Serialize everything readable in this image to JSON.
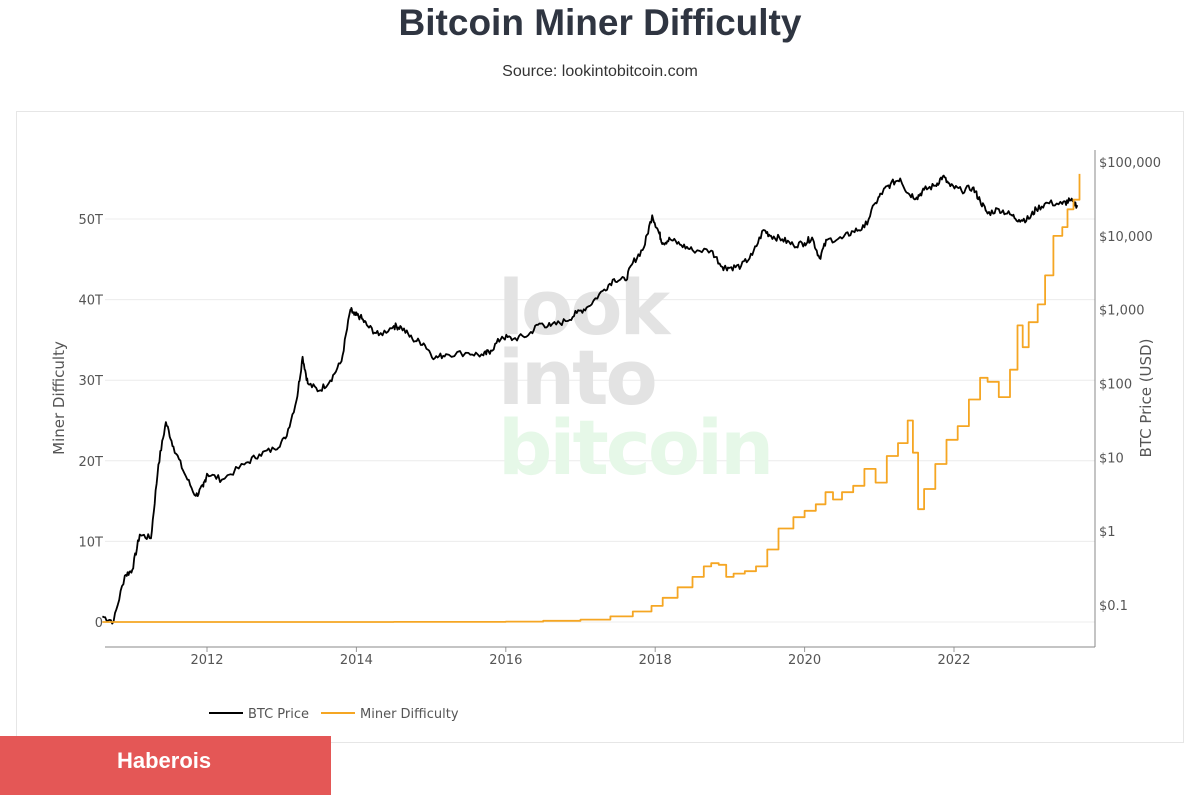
{
  "header": {
    "title": "Bitcoin Miner Difficulty",
    "subtitle": "Source: lookintobitcoin.com"
  },
  "watermark": {
    "line1": "look",
    "line2": "into",
    "line3": "bitcoin"
  },
  "badge": {
    "label": "Haberois"
  },
  "colors": {
    "btc_price": "#000000",
    "miner_difficulty": "#f5a623",
    "badge": "#e45756"
  },
  "chart_data": {
    "type": "line",
    "title": "Bitcoin Miner Difficulty",
    "subtitle": "Source: lookintobitcoin.com",
    "y_left": {
      "label": "Miner Difficulty",
      "range": [
        0,
        57
      ],
      "ticks": [
        "0",
        "10T",
        "20T",
        "30T",
        "40T",
        "50T"
      ],
      "tick_values": [
        0,
        10,
        20,
        30,
        40,
        50
      ]
    },
    "y_right": {
      "label": "BTC Price (USD)",
      "scale": "log",
      "range": [
        0.04,
        150000
      ],
      "ticks": [
        "$0.1",
        "$1",
        "$10",
        "$100",
        "$1,000",
        "$10,000",
        "$100,000"
      ],
      "tick_values": [
        0.1,
        1,
        10,
        100,
        1000,
        10000,
        100000
      ]
    },
    "x_axis": {
      "ticks": [
        "2012",
        "2014",
        "2016",
        "2018",
        "2020",
        "2022"
      ],
      "tick_values": [
        2012,
        2014,
        2016,
        2018,
        2020,
        2022
      ],
      "range": [
        2010.6,
        2023.8
      ]
    },
    "grid": true,
    "legend_position": "bottom-left",
    "series": [
      {
        "name": "BTC Price",
        "axis": "right",
        "points": [
          [
            2010.6,
            0.07
          ],
          [
            2010.75,
            0.06
          ],
          [
            2010.9,
            0.25
          ],
          [
            2011.0,
            0.3
          ],
          [
            2011.1,
            0.9
          ],
          [
            2011.25,
            0.8
          ],
          [
            2011.35,
            8
          ],
          [
            2011.45,
            30
          ],
          [
            2011.55,
            14
          ],
          [
            2011.7,
            6
          ],
          [
            2011.85,
            3
          ],
          [
            2011.95,
            4
          ],
          [
            2012.0,
            6
          ],
          [
            2012.2,
            5
          ],
          [
            2012.5,
            8
          ],
          [
            2012.7,
            11
          ],
          [
            2012.9,
            13
          ],
          [
            2013.05,
            18
          ],
          [
            2013.2,
            60
          ],
          [
            2013.28,
            230
          ],
          [
            2013.35,
            100
          ],
          [
            2013.5,
            80
          ],
          [
            2013.65,
            110
          ],
          [
            2013.8,
            200
          ],
          [
            2013.92,
            1000
          ],
          [
            2013.97,
            850
          ],
          [
            2014.05,
            800
          ],
          [
            2014.15,
            600
          ],
          [
            2014.3,
            450
          ],
          [
            2014.5,
            600
          ],
          [
            2014.6,
            580
          ],
          [
            2014.75,
            400
          ],
          [
            2014.9,
            350
          ],
          [
            2015.05,
            220
          ],
          [
            2015.2,
            250
          ],
          [
            2015.5,
            260
          ],
          [
            2015.7,
            240
          ],
          [
            2015.8,
            280
          ],
          [
            2015.95,
            430
          ],
          [
            2016.1,
            400
          ],
          [
            2016.3,
            450
          ],
          [
            2016.45,
            650
          ],
          [
            2016.6,
            600
          ],
          [
            2016.8,
            700
          ],
          [
            2016.95,
            900
          ],
          [
            2017.1,
            1100
          ],
          [
            2017.3,
            1800
          ],
          [
            2017.45,
            2600
          ],
          [
            2017.6,
            2500
          ],
          [
            2017.7,
            4300
          ],
          [
            2017.85,
            7000
          ],
          [
            2017.96,
            19000
          ],
          [
            2018.05,
            11000
          ],
          [
            2018.1,
            8000
          ],
          [
            2018.2,
            9000
          ],
          [
            2018.35,
            7500
          ],
          [
            2018.5,
            6400
          ],
          [
            2018.75,
            6300
          ],
          [
            2018.9,
            3800
          ],
          [
            2019.0,
            3700
          ],
          [
            2019.15,
            3900
          ],
          [
            2019.3,
            5500
          ],
          [
            2019.45,
            12000
          ],
          [
            2019.55,
            10000
          ],
          [
            2019.7,
            9000
          ],
          [
            2019.85,
            7500
          ],
          [
            2020.0,
            8000
          ],
          [
            2020.1,
            9500
          ],
          [
            2020.2,
            5000
          ],
          [
            2020.3,
            8800
          ],
          [
            2020.5,
            9200
          ],
          [
            2020.65,
            11500
          ],
          [
            2020.8,
            13000
          ],
          [
            2020.95,
            28000
          ],
          [
            2021.05,
            40000
          ],
          [
            2021.15,
            50000
          ],
          [
            2021.28,
            60000
          ],
          [
            2021.38,
            38000
          ],
          [
            2021.5,
            33000
          ],
          [
            2021.6,
            42000
          ],
          [
            2021.75,
            48000
          ],
          [
            2021.85,
            64000
          ],
          [
            2021.95,
            47000
          ],
          [
            2022.1,
            41000
          ],
          [
            2022.25,
            45000
          ],
          [
            2022.35,
            30000
          ],
          [
            2022.45,
            20000
          ],
          [
            2022.6,
            23000
          ],
          [
            2022.75,
            19500
          ],
          [
            2022.87,
            16500
          ],
          [
            2023.0,
            17000
          ],
          [
            2023.1,
            23000
          ],
          [
            2023.25,
            28000
          ],
          [
            2023.45,
            27000
          ],
          [
            2023.55,
            30000
          ],
          [
            2023.65,
            26000
          ]
        ]
      },
      {
        "name": "Miner Difficulty",
        "axis": "left",
        "points": [
          [
            2010.6,
            0.0
          ],
          [
            2011.5,
            0.0
          ],
          [
            2013.0,
            0.0
          ],
          [
            2014.5,
            0.01
          ],
          [
            2016.0,
            0.05
          ],
          [
            2016.5,
            0.15
          ],
          [
            2017.0,
            0.3
          ],
          [
            2017.4,
            0.7
          ],
          [
            2017.7,
            1.3
          ],
          [
            2017.95,
            2.0
          ],
          [
            2018.1,
            3.0
          ],
          [
            2018.3,
            4.3
          ],
          [
            2018.5,
            5.6
          ],
          [
            2018.65,
            6.9
          ],
          [
            2018.75,
            7.3
          ],
          [
            2018.85,
            7.1
          ],
          [
            2018.95,
            5.6
          ],
          [
            2019.05,
            6.0
          ],
          [
            2019.2,
            6.3
          ],
          [
            2019.35,
            6.9
          ],
          [
            2019.5,
            9.0
          ],
          [
            2019.65,
            11.6
          ],
          [
            2019.85,
            13.0
          ],
          [
            2020.0,
            13.8
          ],
          [
            2020.15,
            14.6
          ],
          [
            2020.28,
            16.1
          ],
          [
            2020.38,
            15.2
          ],
          [
            2020.5,
            16.1
          ],
          [
            2020.65,
            16.9
          ],
          [
            2020.8,
            19.0
          ],
          [
            2020.95,
            17.3
          ],
          [
            2021.1,
            20.6
          ],
          [
            2021.25,
            22.2
          ],
          [
            2021.38,
            25.0
          ],
          [
            2021.45,
            21.0
          ],
          [
            2021.52,
            14.0
          ],
          [
            2021.6,
            16.5
          ],
          [
            2021.75,
            19.6
          ],
          [
            2021.9,
            22.6
          ],
          [
            2022.05,
            24.3
          ],
          [
            2022.2,
            27.6
          ],
          [
            2022.35,
            30.3
          ],
          [
            2022.45,
            29.8
          ],
          [
            2022.6,
            27.9
          ],
          [
            2022.75,
            31.3
          ],
          [
            2022.85,
            36.8
          ],
          [
            2022.92,
            34.1
          ],
          [
            2023.0,
            37.2
          ],
          [
            2023.12,
            39.4
          ],
          [
            2023.22,
            43.0
          ],
          [
            2023.33,
            47.9
          ],
          [
            2023.45,
            49.0
          ],
          [
            2023.52,
            51.2
          ],
          [
            2023.6,
            52.4
          ],
          [
            2023.68,
            55.6
          ]
        ]
      }
    ]
  }
}
